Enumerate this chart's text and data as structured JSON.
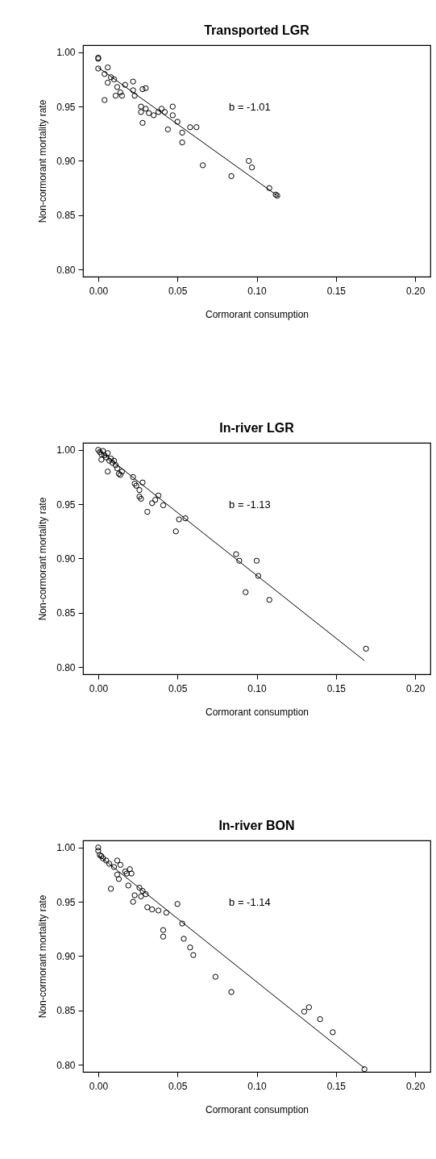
{
  "chart_data": [
    {
      "type": "scatter",
      "title": "Transported LGR",
      "xlabel": "Cormorant consumption",
      "ylabel": "Non-cormorant mortality rate",
      "grid": false,
      "xlim": [
        -0.0096,
        0.2096
      ],
      "ylim": [
        0.7935,
        1.0065
      ],
      "xticks": [
        {
          "value": 0,
          "label": "0.00"
        },
        {
          "value": 0.05,
          "label": "0.05"
        },
        {
          "value": 0.1,
          "label": "0.10"
        },
        {
          "value": 0.15,
          "label": "0.15"
        },
        {
          "value": 0.2,
          "label": "0.20"
        }
      ],
      "yticks": [
        {
          "value": 0.8,
          "label": "0.80"
        },
        {
          "value": 0.85,
          "label": "0.85"
        },
        {
          "value": 0.9,
          "label": "0.90"
        },
        {
          "value": 0.95,
          "label": "0.95"
        },
        {
          "value": 1,
          "label": "1.00"
        }
      ],
      "annotations": [
        "b = -1.01"
      ],
      "series": [
        {
          "marker": "circle",
          "color": "#000000",
          "x": [
            0,
            0,
            0,
            0.006,
            0.004,
            0.008,
            0.01,
            0.006,
            0.012,
            0.014,
            0.011,
            0.015,
            0.017,
            0.022,
            0.022,
            0.023,
            0.028,
            0.03,
            0.004,
            0.027,
            0.027,
            0.028,
            0.03,
            0.032,
            0.035,
            0.038,
            0.04,
            0.042,
            0.047,
            0.044,
            0.047,
            0.05,
            0.053,
            0.053,
            0.058,
            0.062,
            0.066,
            0.084,
            0.095,
            0.097,
            0.108,
            0.112,
            0.113
          ],
          "values": [
            0.995,
            0.994,
            0.985,
            0.986,
            0.98,
            0.977,
            0.975,
            0.972,
            0.968,
            0.963,
            0.96,
            0.96,
            0.97,
            0.973,
            0.965,
            0.96,
            0.966,
            0.967,
            0.956,
            0.95,
            0.945,
            0.935,
            0.948,
            0.944,
            0.942,
            0.945,
            0.948,
            0.945,
            0.95,
            0.929,
            0.942,
            0.936,
            0.926,
            0.917,
            0.931,
            0.931,
            0.896,
            0.886,
            0.9,
            0.894,
            0.875,
            0.869,
            0.868
          ]
        },
        {
          "type": "line",
          "color": "#000000",
          "x": [
            0,
            0.114
          ],
          "values": [
            0.986,
            0.867
          ]
        }
      ]
    },
    {
      "type": "scatter",
      "title": "In-river LGR",
      "xlabel": "Cormorant consumption",
      "ylabel": "Non-cormorant mortality rate",
      "grid": false,
      "xlim": [
        -0.0096,
        0.2096
      ],
      "ylim": [
        0.7935,
        1.0065
      ],
      "xticks": [
        {
          "value": 0,
          "label": "0.00"
        },
        {
          "value": 0.05,
          "label": "0.05"
        },
        {
          "value": 0.1,
          "label": "0.10"
        },
        {
          "value": 0.15,
          "label": "0.15"
        },
        {
          "value": 0.2,
          "label": "0.20"
        }
      ],
      "yticks": [
        {
          "value": 0.8,
          "label": "0.80"
        },
        {
          "value": 0.85,
          "label": "0.85"
        },
        {
          "value": 0.9,
          "label": "0.90"
        },
        {
          "value": 0.95,
          "label": "0.95"
        },
        {
          "value": 1,
          "label": "1.00"
        }
      ],
      "annotations": [
        "b = -1.13"
      ],
      "series": [
        {
          "marker": "circle",
          "color": "#000000",
          "x": [
            0,
            0.001,
            0.002,
            0.003,
            0.004,
            0.005,
            0.006,
            0.002,
            0.007,
            0.008,
            0.009,
            0.01,
            0.011,
            0.006,
            0.012,
            0.013,
            0.015,
            0.014,
            0.022,
            0.023,
            0.024,
            0.026,
            0.028,
            0.026,
            0.027,
            0.031,
            0.034,
            0.036,
            0.038,
            0.041,
            0.049,
            0.051,
            0.055,
            0.087,
            0.089,
            0.093,
            0.1,
            0.101,
            0.108,
            0.169
          ],
          "values": [
            1.0,
            0.998,
            0.996,
            0.999,
            0.995,
            0.993,
            0.997,
            0.991,
            0.99,
            0.992,
            0.988,
            0.99,
            0.986,
            0.98,
            0.983,
            0.978,
            0.98,
            0.977,
            0.975,
            0.969,
            0.967,
            0.963,
            0.97,
            0.957,
            0.955,
            0.943,
            0.951,
            0.954,
            0.958,
            0.949,
            0.925,
            0.936,
            0.937,
            0.904,
            0.898,
            0.869,
            0.898,
            0.884,
            0.862,
            0.817
          ]
        },
        {
          "type": "line",
          "color": "#000000",
          "x": [
            0,
            0.168
          ],
          "values": [
            1.0,
            0.806
          ]
        }
      ]
    },
    {
      "type": "scatter",
      "title": "In-river BON",
      "xlabel": "Cormorant consumption",
      "ylabel": "Non-cormorant mortality rate",
      "grid": false,
      "xlim": [
        -0.0096,
        0.2096
      ],
      "ylim": [
        0.7935,
        1.0065
      ],
      "xticks": [
        {
          "value": 0,
          "label": "0.00"
        },
        {
          "value": 0.05,
          "label": "0.05"
        },
        {
          "value": 0.1,
          "label": "0.10"
        },
        {
          "value": 0.15,
          "label": "0.15"
        },
        {
          "value": 0.2,
          "label": "0.20"
        }
      ],
      "yticks": [
        {
          "value": 0.8,
          "label": "0.80"
        },
        {
          "value": 0.85,
          "label": "0.85"
        },
        {
          "value": 0.9,
          "label": "0.90"
        },
        {
          "value": 0.95,
          "label": "0.95"
        },
        {
          "value": 1,
          "label": "1.00"
        }
      ],
      "annotations": [
        "b = -1.14"
      ],
      "series": [
        {
          "marker": "circle",
          "color": "#000000",
          "x": [
            0,
            0,
            0.001,
            0.002,
            0.003,
            0.005,
            0.007,
            0.012,
            0.01,
            0.014,
            0.017,
            0.018,
            0.02,
            0.021,
            0.012,
            0.013,
            0.008,
            0.019,
            0.023,
            0.026,
            0.028,
            0.027,
            0.03,
            0.022,
            0.031,
            0.034,
            0.038,
            0.043,
            0.05,
            0.041,
            0.041,
            0.053,
            0.054,
            0.058,
            0.06,
            0.074,
            0.084,
            0.13,
            0.133,
            0.14,
            0.148,
            0.168
          ],
          "values": [
            1.0,
            0.997,
            0.993,
            0.992,
            0.99,
            0.988,
            0.985,
            0.988,
            0.982,
            0.984,
            0.978,
            0.976,
            0.98,
            0.976,
            0.975,
            0.971,
            0.962,
            0.965,
            0.956,
            0.963,
            0.96,
            0.955,
            0.957,
            0.95,
            0.945,
            0.943,
            0.942,
            0.94,
            0.948,
            0.924,
            0.918,
            0.93,
            0.916,
            0.908,
            0.901,
            0.881,
            0.867,
            0.849,
            0.853,
            0.842,
            0.83,
            0.796
          ]
        },
        {
          "type": "line",
          "color": "#000000",
          "x": [
            0,
            0.168
          ],
          "values": [
            0.993,
            0.797
          ]
        }
      ]
    }
  ]
}
